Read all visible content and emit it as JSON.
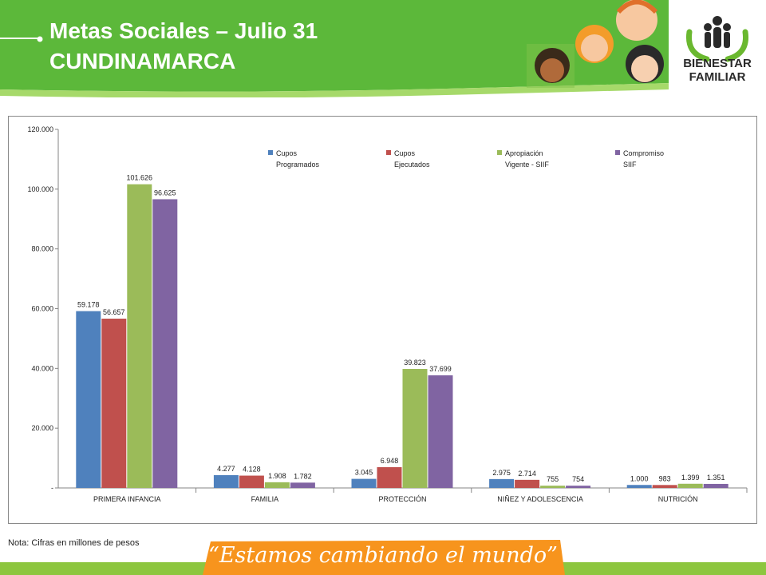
{
  "header": {
    "title_line1": "Metas Sociales – Julio 31",
    "title_line2": "CUNDINAMARCA",
    "logo_line1": "BIENESTAR",
    "logo_line2": "FAMILIAR"
  },
  "colors": {
    "header_green": "#5cb83a",
    "accent_green": "#8dc63f",
    "slogan_orange": "#f7941d"
  },
  "note": "Nota: Cifras en millones de pesos",
  "slogan": "“Estamos cambiando el mundo”",
  "chart_data": {
    "type": "bar",
    "categories": [
      "PRIMERA INFANCIA",
      "FAMILIA",
      "PROTECCIÓN",
      "NIÑEZ Y ADOLESCENCIA",
      "NUTRICIÓN"
    ],
    "series": [
      {
        "name": "Cupos Programados",
        "legend_lines": [
          "Cupos",
          "Programados"
        ],
        "color": "#4f81bd",
        "values": [
          59178,
          4277,
          3045,
          2975,
          1000
        ],
        "labels": [
          "59.178",
          "4.277",
          "3.045",
          "2.975",
          "1.000"
        ]
      },
      {
        "name": "Cupos Ejecutados",
        "legend_lines": [
          "Cupos",
          "Ejecutados"
        ],
        "color": "#c0504d",
        "values": [
          56657,
          4128,
          6948,
          2714,
          983
        ],
        "labels": [
          "56.657",
          "4.128",
          "6.948",
          "2.714",
          "983"
        ]
      },
      {
        "name": "Apropiación Vigente - SIIF",
        "legend_lines": [
          "Apropiación",
          "Vigente - SIIF"
        ],
        "color": "#9bbb59",
        "values": [
          101626,
          1908,
          39823,
          755,
          1399
        ],
        "labels": [
          "101.626",
          "1.908",
          "39.823",
          "755",
          "1.399"
        ]
      },
      {
        "name": "Compromiso SIIF",
        "legend_lines": [
          "Compromiso",
          "SIIF"
        ],
        "color": "#8064a2",
        "values": [
          96625,
          1782,
          37699,
          754,
          1351
        ],
        "labels": [
          "96.625",
          "1.782",
          "37.699",
          "754",
          "1.351"
        ]
      }
    ],
    "ylim": [
      0,
      120000
    ],
    "yticks": [
      0,
      20000,
      40000,
      60000,
      80000,
      100000,
      120000
    ],
    "ytick_labels": [
      "-",
      "20.000",
      "40.000",
      "60.000",
      "80.000",
      "100.000",
      "120.000"
    ],
    "legend_position": "top",
    "grid": false
  }
}
